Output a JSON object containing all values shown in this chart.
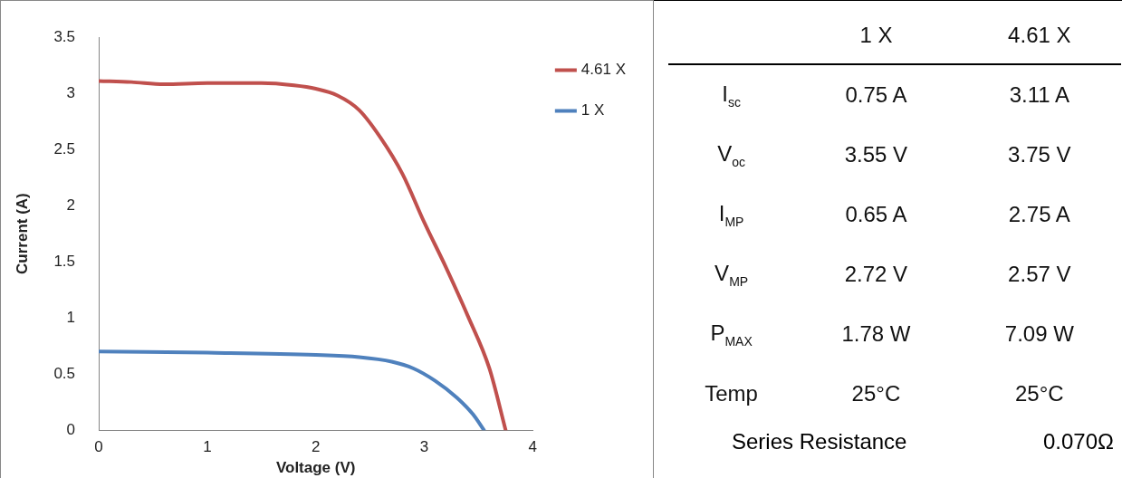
{
  "chart_data": [
    {
      "type": "line",
      "xlabel": "Voltage (V)",
      "ylabel": "Current (A)",
      "x": [
        0,
        0.3,
        0.6,
        1,
        1.5,
        1.8,
        2.0,
        2.2,
        2.4,
        2.6,
        2.8,
        3.0,
        3.2,
        3.4,
        3.6,
        3.75
      ],
      "series": [
        {
          "name": "4.61 X",
          "color": "#c0504d",
          "values": [
            3.11,
            3.1,
            3.08,
            3.09,
            3.09,
            3.07,
            3.04,
            2.98,
            2.85,
            2.6,
            2.28,
            1.85,
            1.45,
            1.02,
            0.55,
            0
          ]
        },
        {
          "name": "1 X",
          "color": "#4f81bd",
          "x": [
            0,
            1,
            2,
            2.4,
            2.7,
            2.9,
            3.1,
            3.3,
            3.45,
            3.55
          ],
          "values": [
            0.7,
            0.69,
            0.67,
            0.65,
            0.61,
            0.55,
            0.44,
            0.29,
            0.14,
            0
          ]
        }
      ],
      "xlim": [
        0,
        4
      ],
      "xticks": [
        0,
        1,
        2,
        3,
        4
      ],
      "ylim": [
        0,
        3.5
      ],
      "yticks": [
        0,
        0.5,
        1,
        1.5,
        2,
        2.5,
        3,
        3.5
      ],
      "grid": false,
      "legend": "top right",
      "marker": "none",
      "line_style": "solid"
    },
    {
      "type": "other",
      "categories": [
        "1 X",
        "4.61 X"
      ],
      "y_categories": [
        "I$_{sc}$",
        "V$_{oc}$",
        "I$_{MP}$",
        "V$_{MP}$",
        "P$_{MAX}$",
        "Temp"
      ],
      "cell_labels": [
        [
          "0.75 A",
          "3.11 A"
        ],
        [
          "3.55 V",
          "3.75 V"
        ],
        [
          "0.65 A",
          "2.75 A"
        ],
        [
          "2.72 V",
          "2.57 V"
        ],
        [
          "1.78 W",
          "7.09 W"
        ],
        [
          "25°C",
          "25°C"
        ]
      ],
      "annotations": [
        "Series Resistance",
        "0.070Ω"
      ]
    }
  ]
}
